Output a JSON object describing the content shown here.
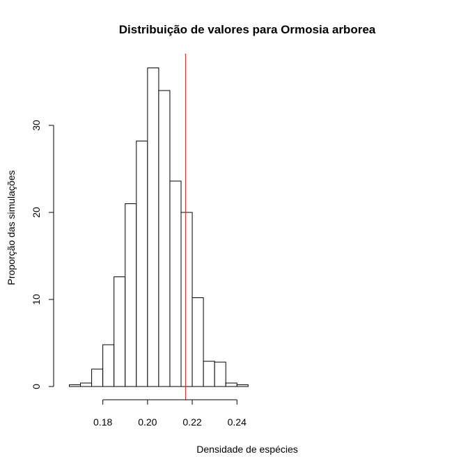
{
  "chart_data": {
    "type": "bar",
    "title": "Distribuição de valores para Ormosia arborea",
    "xlabel": "Densidade de espécies",
    "ylabel": "Proporção das simulações",
    "xlim": [
      0.16,
      0.245
    ],
    "ylim": [
      0,
      38
    ],
    "x_ticks": [
      0.18,
      0.2,
      0.22,
      0.24
    ],
    "x_tick_labels": [
      "0.18",
      "0.20",
      "0.22",
      "0.24"
    ],
    "y_ticks": [
      0,
      10,
      20,
      30
    ],
    "y_tick_labels": [
      "0",
      "10",
      "20",
      "30"
    ],
    "bin_edges": [
      0.165,
      0.17,
      0.175,
      0.18,
      0.185,
      0.19,
      0.195,
      0.2,
      0.205,
      0.21,
      0.215,
      0.22,
      0.225,
      0.23,
      0.235,
      0.24,
      0.245
    ],
    "values": [
      0.2,
      0.4,
      2.0,
      4.8,
      12.6,
      21.0,
      28.2,
      36.6,
      34.0,
      23.6,
      20.0,
      10.2,
      2.9,
      2.8,
      0.4,
      0.2
    ],
    "reference_line": {
      "x": 0.217,
      "color": "#d62728"
    },
    "grid": false,
    "bar_fill": "#ffffff",
    "bar_stroke": "#000000"
  }
}
